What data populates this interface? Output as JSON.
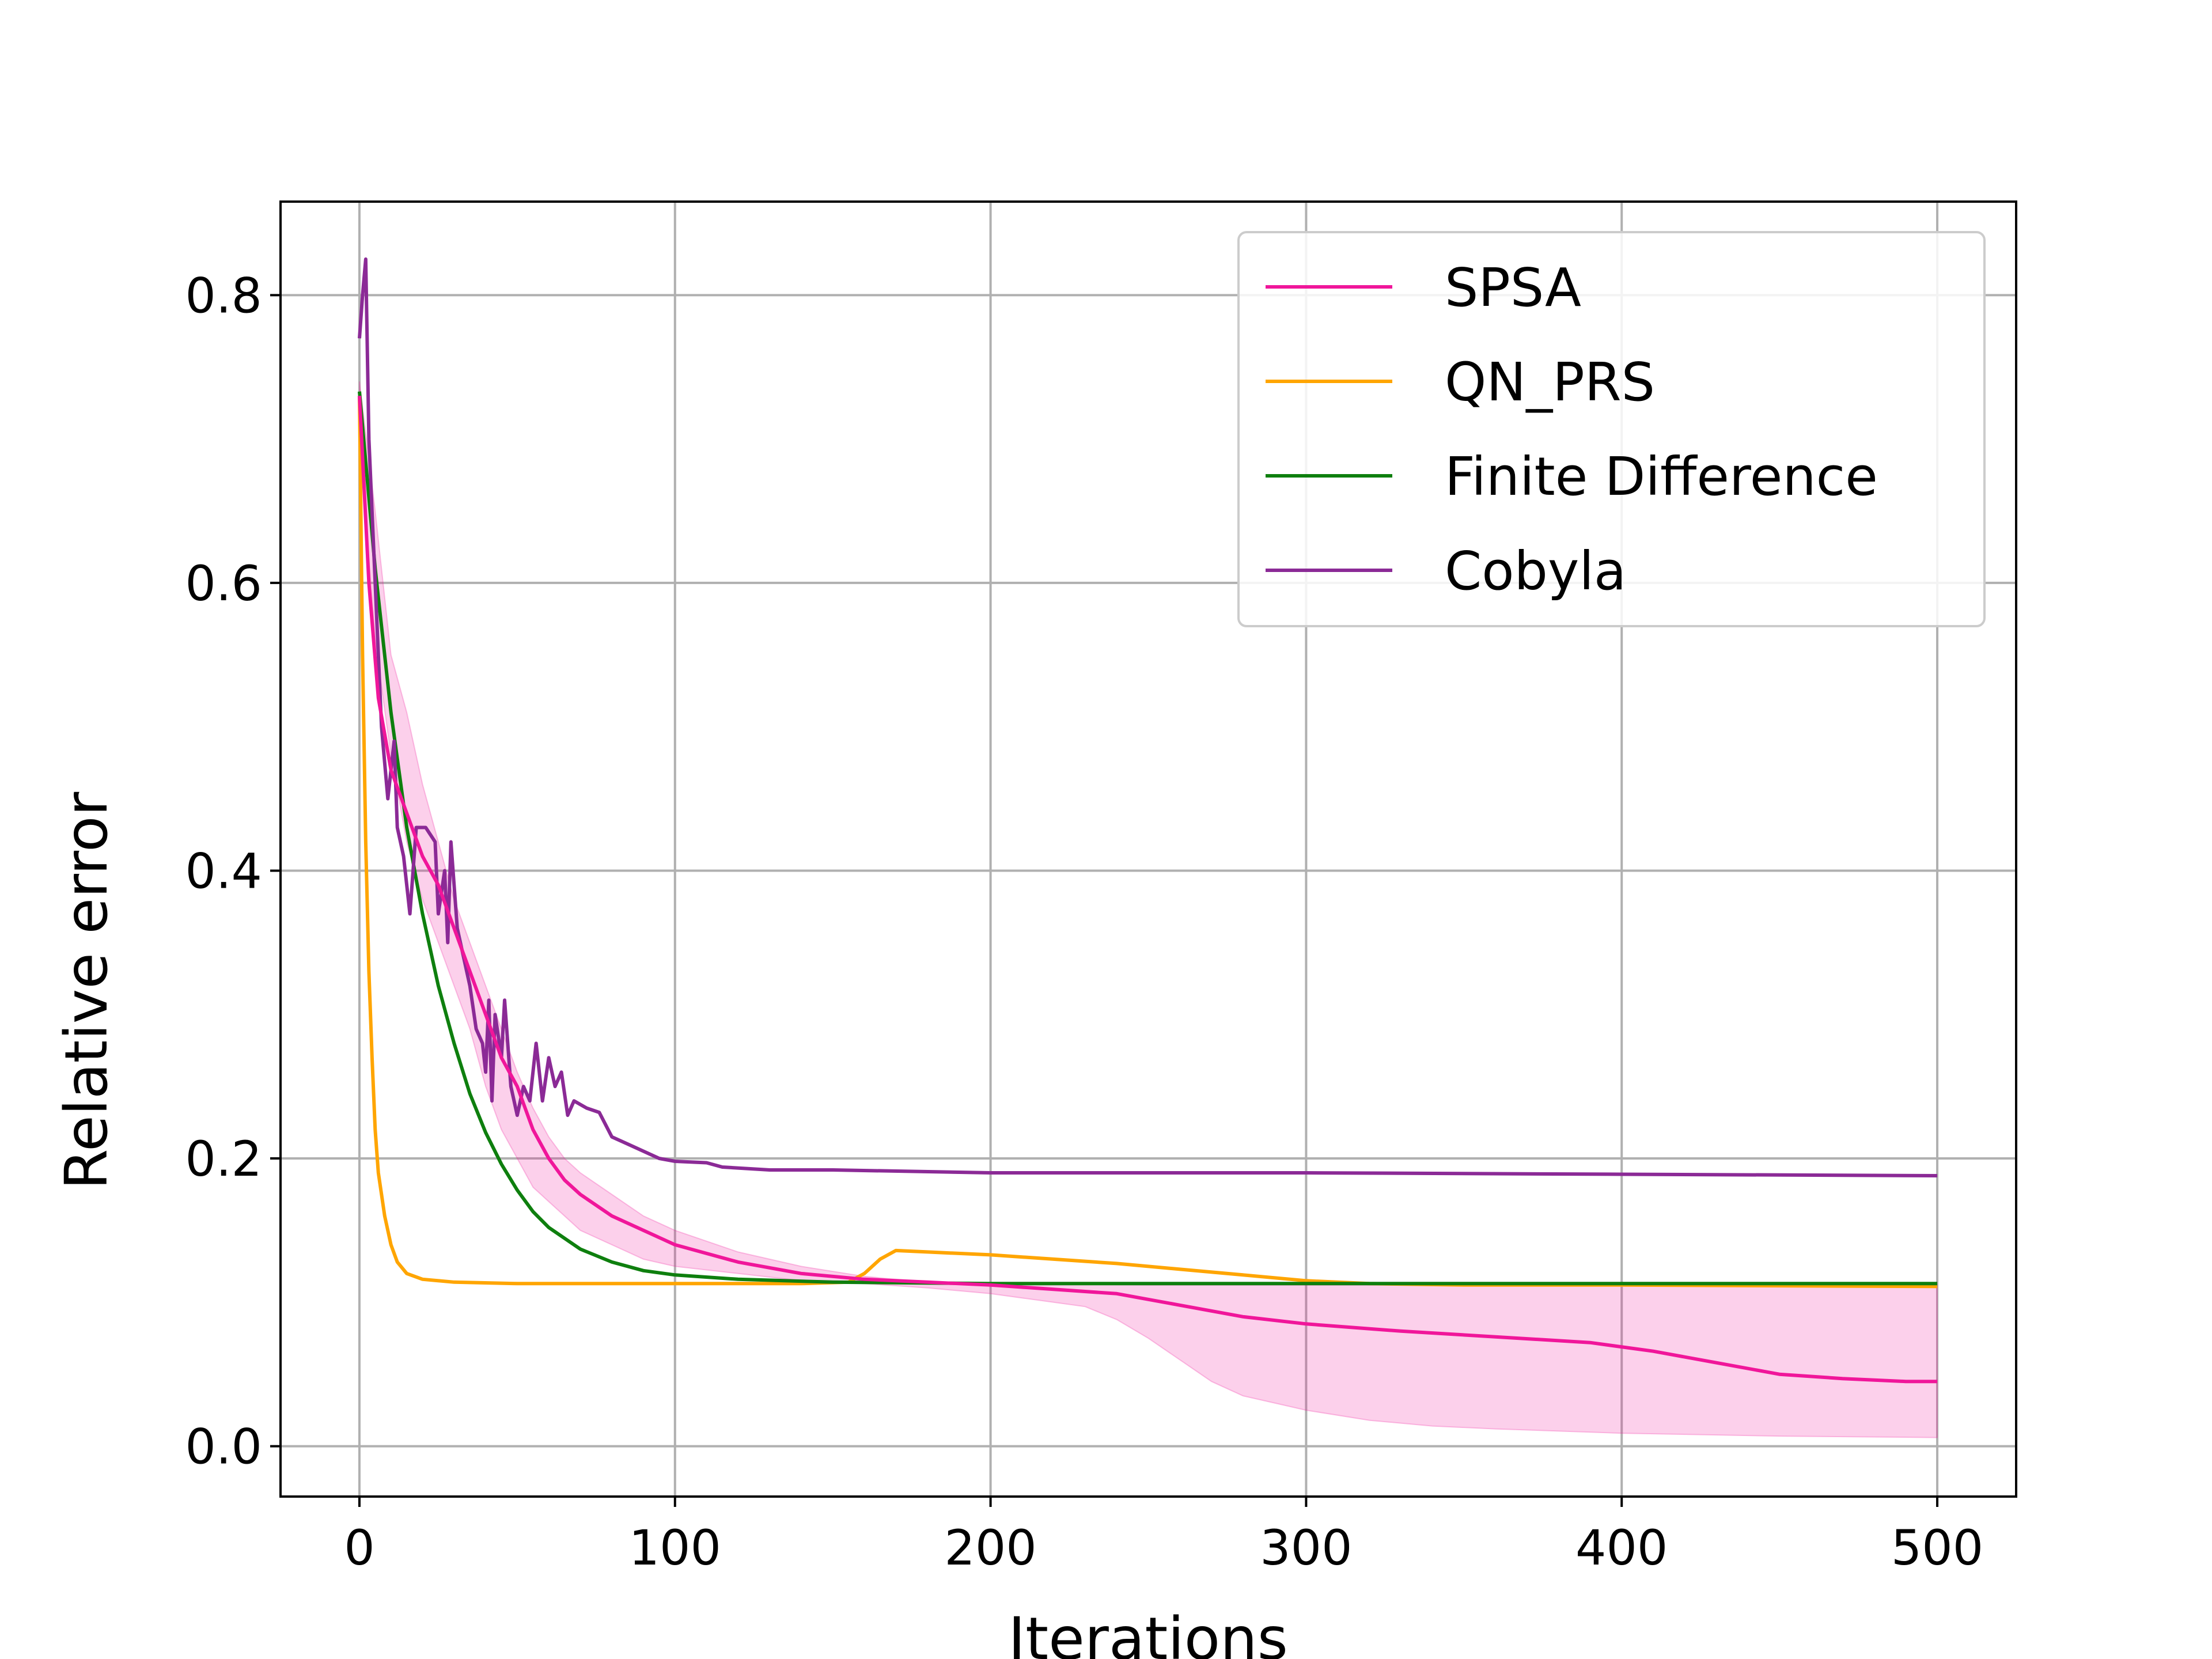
{
  "chart_data": {
    "type": "line",
    "title": "",
    "xlabel": "Iterations",
    "ylabel": "Relative error",
    "xlim": [
      -25,
      525
    ],
    "ylim": [
      -0.035,
      0.865
    ],
    "xticks": [
      0,
      100,
      200,
      300,
      400,
      500
    ],
    "xtick_labels": [
      "0",
      "100",
      "200",
      "300",
      "400",
      "500"
    ],
    "yticks": [
      0.0,
      0.2,
      0.4,
      0.6,
      0.8
    ],
    "ytick_labels": [
      "0.0",
      "0.2",
      "0.4",
      "0.6",
      "0.8"
    ],
    "grid": true,
    "legend_position": "top-right",
    "series": [
      {
        "name": "SPSA",
        "color": "#f0169a",
        "points": [
          [
            0,
            0.73
          ],
          [
            3,
            0.6
          ],
          [
            6,
            0.52
          ],
          [
            10,
            0.47
          ],
          [
            15,
            0.44
          ],
          [
            20,
            0.41
          ],
          [
            25,
            0.39
          ],
          [
            30,
            0.36
          ],
          [
            35,
            0.33
          ],
          [
            40,
            0.3
          ],
          [
            45,
            0.27
          ],
          [
            50,
            0.25
          ],
          [
            55,
            0.22
          ],
          [
            60,
            0.2
          ],
          [
            65,
            0.185
          ],
          [
            70,
            0.175
          ],
          [
            80,
            0.16
          ],
          [
            90,
            0.15
          ],
          [
            100,
            0.14
          ],
          [
            120,
            0.128
          ],
          [
            140,
            0.12
          ],
          [
            160,
            0.116
          ],
          [
            180,
            0.114
          ],
          [
            200,
            0.112
          ],
          [
            220,
            0.109
          ],
          [
            240,
            0.106
          ],
          [
            260,
            0.098
          ],
          [
            280,
            0.09
          ],
          [
            300,
            0.085
          ],
          [
            330,
            0.08
          ],
          [
            360,
            0.076
          ],
          [
            390,
            0.072
          ],
          [
            410,
            0.066
          ],
          [
            430,
            0.058
          ],
          [
            450,
            0.05
          ],
          [
            470,
            0.047
          ],
          [
            490,
            0.045
          ],
          [
            500,
            0.045
          ]
        ],
        "band_upper": [
          [
            0,
            0.74
          ],
          [
            5,
            0.65
          ],
          [
            10,
            0.55
          ],
          [
            15,
            0.51
          ],
          [
            20,
            0.46
          ],
          [
            25,
            0.42
          ],
          [
            30,
            0.38
          ],
          [
            35,
            0.35
          ],
          [
            40,
            0.32
          ],
          [
            45,
            0.29
          ],
          [
            50,
            0.26
          ],
          [
            55,
            0.235
          ],
          [
            60,
            0.215
          ],
          [
            65,
            0.2
          ],
          [
            70,
            0.19
          ],
          [
            80,
            0.175
          ],
          [
            90,
            0.16
          ],
          [
            100,
            0.15
          ],
          [
            120,
            0.135
          ],
          [
            140,
            0.125
          ],
          [
            160,
            0.118
          ],
          [
            180,
            0.114
          ],
          [
            200,
            0.113
          ],
          [
            250,
            0.112
          ],
          [
            300,
            0.112
          ],
          [
            400,
            0.112
          ],
          [
            500,
            0.112
          ]
        ],
        "band_lower": [
          [
            0,
            0.7
          ],
          [
            5,
            0.56
          ],
          [
            10,
            0.48
          ],
          [
            15,
            0.42
          ],
          [
            20,
            0.38
          ],
          [
            25,
            0.35
          ],
          [
            30,
            0.32
          ],
          [
            35,
            0.29
          ],
          [
            40,
            0.25
          ],
          [
            45,
            0.22
          ],
          [
            50,
            0.2
          ],
          [
            55,
            0.18
          ],
          [
            60,
            0.17
          ],
          [
            65,
            0.16
          ],
          [
            70,
            0.15
          ],
          [
            80,
            0.14
          ],
          [
            90,
            0.13
          ],
          [
            100,
            0.125
          ],
          [
            120,
            0.12
          ],
          [
            140,
            0.115
          ],
          [
            160,
            0.113
          ],
          [
            180,
            0.11
          ],
          [
            200,
            0.106
          ],
          [
            220,
            0.1
          ],
          [
            230,
            0.097
          ],
          [
            240,
            0.088
          ],
          [
            250,
            0.075
          ],
          [
            260,
            0.06
          ],
          [
            270,
            0.045
          ],
          [
            280,
            0.035
          ],
          [
            290,
            0.03
          ],
          [
            300,
            0.025
          ],
          [
            320,
            0.018
          ],
          [
            340,
            0.014
          ],
          [
            360,
            0.012
          ],
          [
            400,
            0.009
          ],
          [
            450,
            0.007
          ],
          [
            500,
            0.006
          ]
        ]
      },
      {
        "name": "QN_PRS",
        "color": "#ffa500",
        "points": [
          [
            0,
            0.73
          ],
          [
            1,
            0.55
          ],
          [
            2,
            0.42
          ],
          [
            3,
            0.33
          ],
          [
            4,
            0.27
          ],
          [
            5,
            0.22
          ],
          [
            6,
            0.19
          ],
          [
            8,
            0.16
          ],
          [
            10,
            0.14
          ],
          [
            12,
            0.128
          ],
          [
            15,
            0.12
          ],
          [
            20,
            0.116
          ],
          [
            30,
            0.114
          ],
          [
            50,
            0.113
          ],
          [
            100,
            0.113
          ],
          [
            140,
            0.113
          ],
          [
            155,
            0.114
          ],
          [
            160,
            0.12
          ],
          [
            165,
            0.13
          ],
          [
            170,
            0.136
          ],
          [
            180,
            0.135
          ],
          [
            200,
            0.133
          ],
          [
            220,
            0.13
          ],
          [
            240,
            0.127
          ],
          [
            260,
            0.123
          ],
          [
            280,
            0.119
          ],
          [
            300,
            0.115
          ],
          [
            320,
            0.113
          ],
          [
            350,
            0.112
          ],
          [
            400,
            0.112
          ],
          [
            500,
            0.111
          ]
        ]
      },
      {
        "name": "Finite Difference",
        "color": "#0e7f0e",
        "points": [
          [
            0,
            0.733
          ],
          [
            5,
            0.61
          ],
          [
            10,
            0.51
          ],
          [
            15,
            0.43
          ],
          [
            20,
            0.37
          ],
          [
            25,
            0.32
          ],
          [
            30,
            0.28
          ],
          [
            35,
            0.245
          ],
          [
            40,
            0.218
          ],
          [
            45,
            0.196
          ],
          [
            50,
            0.178
          ],
          [
            55,
            0.163
          ],
          [
            60,
            0.152
          ],
          [
            70,
            0.137
          ],
          [
            80,
            0.128
          ],
          [
            90,
            0.122
          ],
          [
            100,
            0.119
          ],
          [
            120,
            0.116
          ],
          [
            150,
            0.114
          ],
          [
            200,
            0.113
          ],
          [
            300,
            0.113
          ],
          [
            400,
            0.113
          ],
          [
            500,
            0.113
          ]
        ]
      },
      {
        "name": "Cobyla",
        "color": "#8b2a96",
        "points": [
          [
            0,
            0.77
          ],
          [
            1,
            0.8
          ],
          [
            2,
            0.825
          ],
          [
            3,
            0.7
          ],
          [
            5,
            0.6
          ],
          [
            7,
            0.5
          ],
          [
            9,
            0.45
          ],
          [
            11,
            0.49
          ],
          [
            12,
            0.43
          ],
          [
            14,
            0.41
          ],
          [
            16,
            0.37
          ],
          [
            18,
            0.43
          ],
          [
            21,
            0.43
          ],
          [
            24,
            0.42
          ],
          [
            25,
            0.37
          ],
          [
            27,
            0.4
          ],
          [
            28,
            0.35
          ],
          [
            29,
            0.42
          ],
          [
            31,
            0.36
          ],
          [
            33,
            0.34
          ],
          [
            35,
            0.32
          ],
          [
            37,
            0.29
          ],
          [
            39,
            0.28
          ],
          [
            40,
            0.26
          ],
          [
            41,
            0.31
          ],
          [
            42,
            0.24
          ],
          [
            43,
            0.3
          ],
          [
            45,
            0.27
          ],
          [
            46,
            0.31
          ],
          [
            48,
            0.25
          ],
          [
            50,
            0.23
          ],
          [
            52,
            0.25
          ],
          [
            54,
            0.24
          ],
          [
            56,
            0.28
          ],
          [
            58,
            0.24
          ],
          [
            60,
            0.27
          ],
          [
            62,
            0.25
          ],
          [
            64,
            0.26
          ],
          [
            66,
            0.23
          ],
          [
            68,
            0.24
          ],
          [
            72,
            0.235
          ],
          [
            76,
            0.232
          ],
          [
            80,
            0.215
          ],
          [
            85,
            0.21
          ],
          [
            90,
            0.205
          ],
          [
            95,
            0.2
          ],
          [
            100,
            0.198
          ],
          [
            110,
            0.197
          ],
          [
            115,
            0.194
          ],
          [
            130,
            0.192
          ],
          [
            150,
            0.192
          ],
          [
            200,
            0.19
          ],
          [
            300,
            0.19
          ],
          [
            400,
            0.189
          ],
          [
            500,
            0.188
          ]
        ]
      }
    ]
  }
}
